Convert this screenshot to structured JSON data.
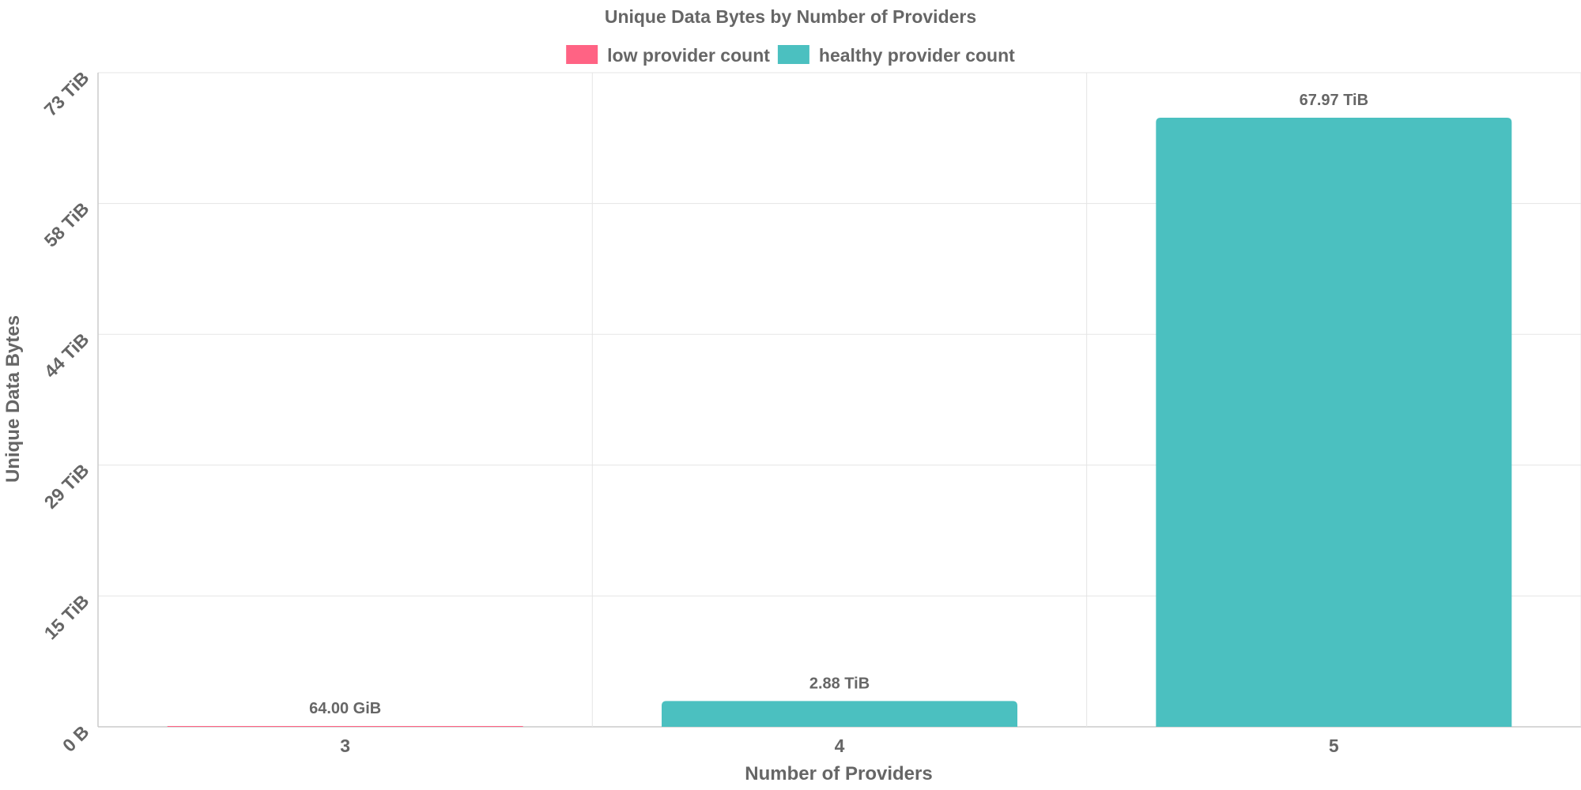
{
  "chart_data": {
    "type": "bar",
    "title": "Unique Data Bytes by Number of Providers",
    "xlabel": "Number of Providers",
    "ylabel": "Unique Data Bytes",
    "categories": [
      "3",
      "4",
      "5"
    ],
    "y_unit": "TiB",
    "ylim": [
      0,
      73
    ],
    "y_ticks": [
      {
        "value": 0,
        "label": "0 B"
      },
      {
        "value": 14.6,
        "label": "15 TiB"
      },
      {
        "value": 29.2,
        "label": "29 TiB"
      },
      {
        "value": 43.8,
        "label": "44 TiB"
      },
      {
        "value": 58.4,
        "label": "58 TiB"
      },
      {
        "value": 73,
        "label": "73 TiB"
      }
    ],
    "series": [
      {
        "name": "low provider count",
        "color": "#ff6384",
        "values": [
          0.0625,
          null,
          null
        ],
        "labels": [
          "64.00 GiB",
          null,
          null
        ]
      },
      {
        "name": "healthy provider count",
        "color": "#4bc0c0",
        "values": [
          null,
          2.88,
          67.97
        ],
        "labels": [
          null,
          "2.88 TiB",
          "67.97 TiB"
        ]
      }
    ],
    "grid": true,
    "legend_position": "top"
  }
}
